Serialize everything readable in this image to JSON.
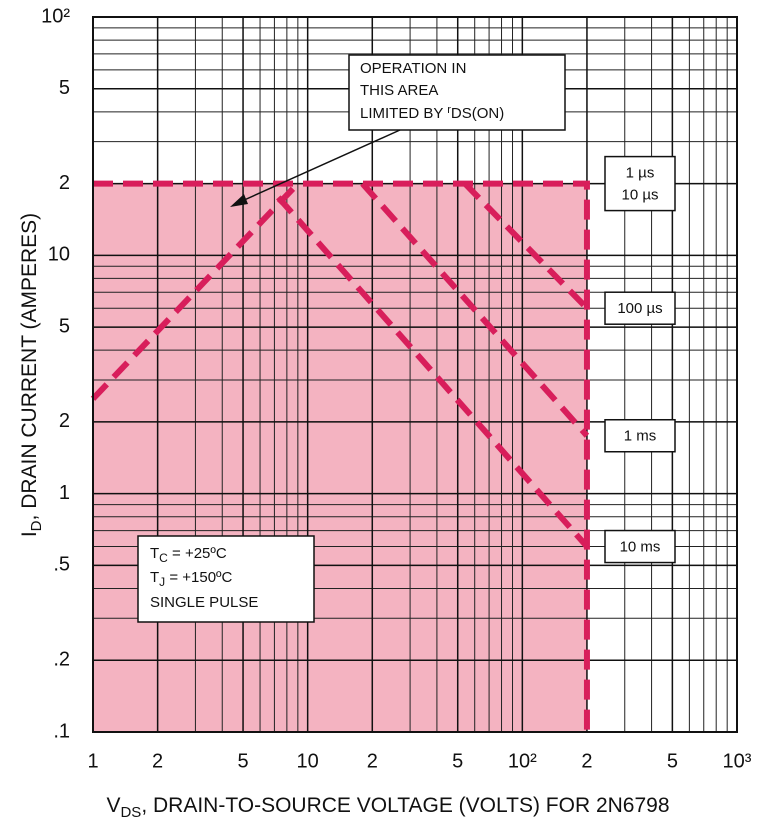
{
  "chart_data": {
    "type": "line",
    "xlog": true,
    "ylog": true,
    "grid": true,
    "xlim": [
      1,
      1000
    ],
    "ylim": [
      0.1,
      100
    ],
    "xticks": [
      1,
      2,
      5,
      10,
      {
        "value": 20,
        "label": "2"
      },
      {
        "value": 50,
        "label": "5"
      },
      {
        "value": 100,
        "label": "10²"
      },
      {
        "value": 200,
        "label": "2"
      },
      {
        "value": 500,
        "label": "5"
      },
      {
        "value": 1000,
        "label": "10³"
      }
    ],
    "yticks": [
      {
        "value": 0.1,
        "label": ".1"
      },
      {
        "value": 0.2,
        "label": ".2"
      },
      {
        "value": 0.5,
        "label": ".5"
      },
      1,
      2,
      5,
      10,
      {
        "value": 20,
        "label": "2"
      },
      {
        "value": 50,
        "label": "5"
      },
      {
        "value": 100,
        "label": "10²"
      }
    ],
    "x_label": [
      "V",
      "DS",
      ", DRAIN-TO-SOURCE VOLTAGE (VOLTS) FOR 2N6798"
    ],
    "y_label": [
      "I",
      "D",
      ", DRAIN CURRENT (AMPERES)"
    ],
    "line_color": "#d81e5b",
    "series": [
      {
        "name": [
          "1 µs",
          "10 µs"
        ],
        "x": [
          1,
          200,
          200
        ],
        "values": [
          20,
          20,
          0.1
        ],
        "fill": "#f4b3c1"
      },
      {
        "x": [
          1,
          9
        ],
        "values": [
          2.5,
          20
        ]
      },
      {
        "name": "100 µs",
        "x": [
          54,
          200
        ],
        "values": [
          20,
          6
        ]
      },
      {
        "name": "1 ms",
        "x": [
          18,
          200
        ],
        "values": [
          20,
          1.75
        ]
      },
      {
        "name": "10 ms",
        "x": [
          7.3,
          200
        ],
        "values": [
          17.5,
          0.6
        ]
      }
    ],
    "annotation": [
      "OPERATION IN",
      "THIS AREA",
      "LIMITED BY ",
      "r",
      "DS(ON)"
    ],
    "conditions": [
      [
        "T",
        "C",
        " = +25ºC"
      ],
      [
        "T",
        "J",
        " = +150ºC"
      ],
      "SINGLE PULSE"
    ]
  }
}
